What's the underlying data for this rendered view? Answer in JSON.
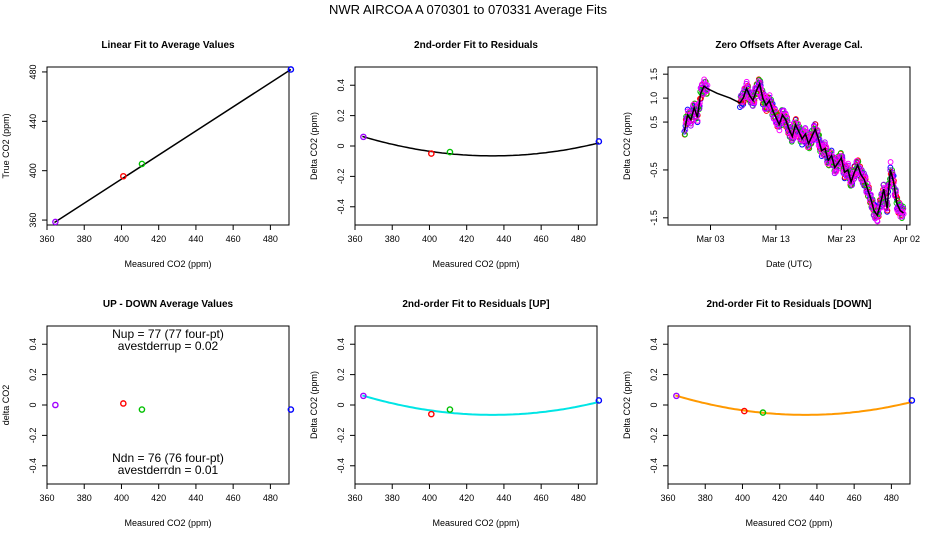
{
  "page_title": "NWR   AIRCOA A   070301 to 070331   Average Fits",
  "chart_data": [
    {
      "id": "p1",
      "type": "scatter",
      "title": "Linear Fit to Average Values",
      "xlabel": "Measured CO2 (ppm)",
      "ylabel": "True CO2 (ppm)",
      "xlim": [
        360,
        490
      ],
      "ylim": [
        356,
        484
      ],
      "xticks": [
        360,
        380,
        400,
        420,
        440,
        460,
        480
      ],
      "yticks": [
        360,
        400,
        440,
        480
      ],
      "points": [
        {
          "x": 364.5,
          "y": 358.5,
          "color": "#a000ff"
        },
        {
          "x": 401.0,
          "y": 395.5,
          "color": "#ff0000"
        },
        {
          "x": 411.0,
          "y": 405.5,
          "color": "#00c000"
        },
        {
          "x": 491.0,
          "y": 482.0,
          "color": "#0000ff"
        }
      ],
      "fit_line": {
        "type": "linear",
        "x": [
          364,
          491
        ],
        "y": [
          358,
          482
        ],
        "color": "#000000"
      }
    },
    {
      "id": "p2",
      "type": "scatter",
      "title": "2nd-order Fit to Residuals",
      "xlabel": "Measured CO2 (ppm)",
      "ylabel": "Delta CO2 (ppm)",
      "xlim": [
        360,
        490
      ],
      "ylim": [
        -0.52,
        0.52
      ],
      "xticks": [
        360,
        380,
        400,
        420,
        440,
        460,
        480
      ],
      "yticks": [
        -0.4,
        -0.2,
        0.0,
        0.2,
        0.4
      ],
      "points": [
        {
          "x": 364.5,
          "y": 0.06,
          "color": "#a000ff"
        },
        {
          "x": 401.0,
          "y": -0.05,
          "color": "#ff0000"
        },
        {
          "x": 411.0,
          "y": -0.04,
          "color": "#00c000"
        },
        {
          "x": 491.0,
          "y": 0.03,
          "color": "#0000ff"
        }
      ],
      "fit_curve": {
        "type": "quadratic",
        "x_min": 364,
        "x_max": 491,
        "x_vertex": 434,
        "y_vertex": -0.065,
        "y_start": 0.063,
        "color": "#000000"
      }
    },
    {
      "id": "p3",
      "type": "line",
      "title": "Zero Offsets After Average Cal.",
      "xlabel": "Date (UTC)",
      "ylabel": "Delta CO2 (ppm)",
      "xlim": [
        -4.5,
        32.5
      ],
      "ylim": [
        -1.65,
        1.65
      ],
      "xticks": [
        2,
        12,
        22,
        32
      ],
      "xticklabels": [
        "Mar 03",
        "Mar 13",
        "Mar 23",
        "Apr 02"
      ],
      "yticks": [
        -1.5,
        -0.5,
        0.5,
        1.0,
        1.5
      ],
      "yticklabels": [
        "-1.5",
        "-0.5",
        "0.5",
        "1.0",
        "1.5"
      ],
      "series_colors": [
        "#0000ff",
        "#ff0000",
        "#00c000",
        "#a000ff",
        "#ff00ff"
      ],
      "mean_line": [
        [
          -2.0,
          0.3
        ],
        [
          -1.5,
          0.65
        ],
        [
          -1.0,
          0.55
        ],
        [
          -0.5,
          0.8
        ],
        [
          0.0,
          0.6
        ],
        [
          0.5,
          1.1
        ],
        [
          1.0,
          1.25
        ],
        [
          1.5,
          1.2
        ],
        [
          3.0,
          1.1
        ],
        [
          5.0,
          1.0
        ],
        [
          6.5,
          0.9
        ],
        [
          7.0,
          1.0
        ],
        [
          7.5,
          1.2
        ],
        [
          8.0,
          1.05
        ],
        [
          8.5,
          0.95
        ],
        [
          9.0,
          1.15
        ],
        [
          9.5,
          1.3
        ],
        [
          10.0,
          1.0
        ],
        [
          10.5,
          0.85
        ],
        [
          11.0,
          0.95
        ],
        [
          11.5,
          0.75
        ],
        [
          12.0,
          0.6
        ],
        [
          12.5,
          0.45
        ],
        [
          13.0,
          0.65
        ],
        [
          13.5,
          0.55
        ],
        [
          14.0,
          0.35
        ],
        [
          14.5,
          0.2
        ],
        [
          15.0,
          0.45
        ],
        [
          15.5,
          0.3
        ],
        [
          16.0,
          0.15
        ],
        [
          16.5,
          0.25
        ],
        [
          17.0,
          0.05
        ],
        [
          17.5,
          0.2
        ],
        [
          18.0,
          0.35
        ],
        [
          18.5,
          0.15
        ],
        [
          19.0,
          -0.1
        ],
        [
          19.5,
          -0.05
        ],
        [
          20.0,
          -0.3
        ],
        [
          20.5,
          -0.2
        ],
        [
          21.0,
          -0.45
        ],
        [
          21.5,
          -0.35
        ],
        [
          22.0,
          -0.25
        ],
        [
          22.5,
          -0.55
        ],
        [
          23.0,
          -0.5
        ],
        [
          23.5,
          -0.75
        ],
        [
          24.0,
          -0.55
        ],
        [
          24.5,
          -0.4
        ],
        [
          25.0,
          -0.6
        ],
        [
          25.5,
          -0.7
        ],
        [
          26.0,
          -0.9
        ],
        [
          26.5,
          -1.1
        ],
        [
          27.0,
          -1.35
        ],
        [
          27.5,
          -1.45
        ],
        [
          28.0,
          -1.2
        ],
        [
          28.5,
          -0.9
        ],
        [
          29.0,
          -1.3
        ],
        [
          29.5,
          -0.5
        ],
        [
          30.0,
          -0.75
        ],
        [
          30.5,
          -1.2
        ],
        [
          31.0,
          -1.35
        ],
        [
          31.5,
          -1.4
        ]
      ]
    },
    {
      "id": "p4",
      "type": "scatter",
      "title": "UP - DOWN Average Values",
      "xlabel": "Measured CO2 (ppm)",
      "ylabel": "delta CO2",
      "xlim": [
        360,
        490
      ],
      "ylim": [
        -0.52,
        0.52
      ],
      "xticks": [
        360,
        380,
        400,
        420,
        440,
        460,
        480
      ],
      "yticks": [
        -0.4,
        -0.2,
        0.0,
        0.2,
        0.4
      ],
      "points": [
        {
          "x": 364.5,
          "y": 0.0,
          "color": "#a000ff"
        },
        {
          "x": 401.0,
          "y": 0.01,
          "color": "#ff0000"
        },
        {
          "x": 411.0,
          "y": -0.03,
          "color": "#00c000"
        },
        {
          "x": 491.0,
          "y": -0.03,
          "color": "#0000ff"
        }
      ],
      "annotations": {
        "nup": "Nup = 77 (77 four-pt)",
        "avestderrup": "avestderrup =  0.02",
        "ndn": "Ndn = 76 (76 four-pt)",
        "avestderrdn": "avestderrdn =  0.01"
      }
    },
    {
      "id": "p5",
      "type": "scatter",
      "title": "2nd-order Fit to Residuals [UP]",
      "xlabel": "Measured CO2 (ppm)",
      "ylabel": "Delta CO2 (ppm)",
      "xlim": [
        360,
        490
      ],
      "ylim": [
        -0.52,
        0.52
      ],
      "xticks": [
        360,
        380,
        400,
        420,
        440,
        460,
        480
      ],
      "yticks": [
        -0.4,
        -0.2,
        0.0,
        0.2,
        0.4
      ],
      "points": [
        {
          "x": 364.5,
          "y": 0.06,
          "color": "#a000ff"
        },
        {
          "x": 401.0,
          "y": -0.06,
          "color": "#ff0000"
        },
        {
          "x": 411.0,
          "y": -0.03,
          "color": "#00c000"
        },
        {
          "x": 491.0,
          "y": 0.03,
          "color": "#0000ff"
        }
      ],
      "fit_curve": {
        "type": "quadratic",
        "x_min": 364,
        "x_max": 491,
        "x_vertex": 434,
        "y_vertex": -0.065,
        "y_start": 0.063,
        "color": "#00e5e5"
      }
    },
    {
      "id": "p6",
      "type": "scatter",
      "title": "2nd-order Fit to Residuals [DOWN]",
      "xlabel": "Measured CO2 (ppm)",
      "ylabel": "Delta CO2 (ppm)",
      "xlim": [
        360,
        490
      ],
      "ylim": [
        -0.52,
        0.52
      ],
      "xticks": [
        360,
        380,
        400,
        420,
        440,
        460,
        480
      ],
      "yticks": [
        -0.4,
        -0.2,
        0.0,
        0.2,
        0.4
      ],
      "points": [
        {
          "x": 364.5,
          "y": 0.06,
          "color": "#a000ff"
        },
        {
          "x": 401.0,
          "y": -0.04,
          "color": "#ff0000"
        },
        {
          "x": 411.0,
          "y": -0.05,
          "color": "#00c000"
        },
        {
          "x": 491.0,
          "y": 0.03,
          "color": "#0000ff"
        }
      ],
      "fit_curve": {
        "type": "quadratic",
        "x_min": 364,
        "x_max": 491,
        "x_vertex": 434,
        "y_vertex": -0.065,
        "y_start": 0.063,
        "color": "#ff9900"
      }
    }
  ]
}
